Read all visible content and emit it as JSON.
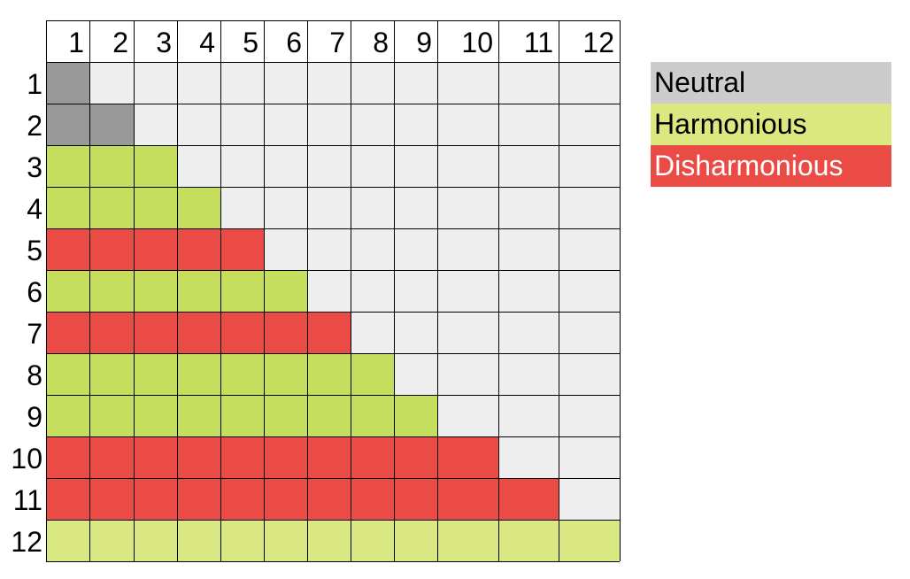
{
  "columns": [
    "1",
    "2",
    "3",
    "4",
    "5",
    "6",
    "7",
    "8",
    "9",
    "10",
    "11",
    "12"
  ],
  "rows": [
    "1",
    "2",
    "3",
    "4",
    "5",
    "6",
    "7",
    "8",
    "9",
    "10",
    "11",
    "12"
  ],
  "row_categories": [
    "neutral",
    "neutral",
    "harmonious",
    "harmonious",
    "disharmonious",
    "harmonious",
    "disharmonious",
    "harmonious",
    "harmonious",
    "disharmonious",
    "disharmonious",
    "harmonious-light"
  ],
  "colors": {
    "neutral": "#999999",
    "harmonious": "#c6de5e",
    "harmonious-light": "#d9e882",
    "disharmonious": "#ea4b45",
    "empty": "#eeeeee",
    "border": "#000000",
    "legend_neutral": "#cccccc",
    "legend_harmonious": "#dbe87f",
    "legend_disharmonious": "#ea4b45"
  },
  "legend": [
    {
      "label": "Neutral",
      "key": "neutral"
    },
    {
      "label": "Harmonious",
      "key": "harmonious"
    },
    {
      "label": "Disharmonious",
      "key": "disharmonious"
    }
  ]
}
